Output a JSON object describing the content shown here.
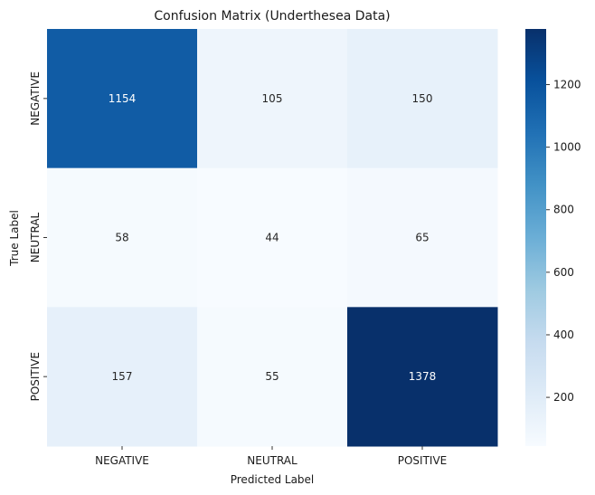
{
  "chart_data": {
    "type": "heatmap",
    "title": "Confusion Matrix (Underthesea Data)",
    "xlabel": "Predicted Label",
    "ylabel": "True Label",
    "x_categories": [
      "NEGATIVE",
      "NEUTRAL",
      "POSITIVE"
    ],
    "y_categories": [
      "NEGATIVE",
      "NEUTRAL",
      "POSITIVE"
    ],
    "values": [
      [
        1154,
        105,
        150
      ],
      [
        58,
        44,
        65
      ],
      [
        157,
        55,
        1378
      ]
    ],
    "colormap": "Blues",
    "colorbar": {
      "range": [
        44,
        1378
      ],
      "ticks": [
        200,
        400,
        600,
        800,
        1000,
        1200
      ]
    }
  }
}
